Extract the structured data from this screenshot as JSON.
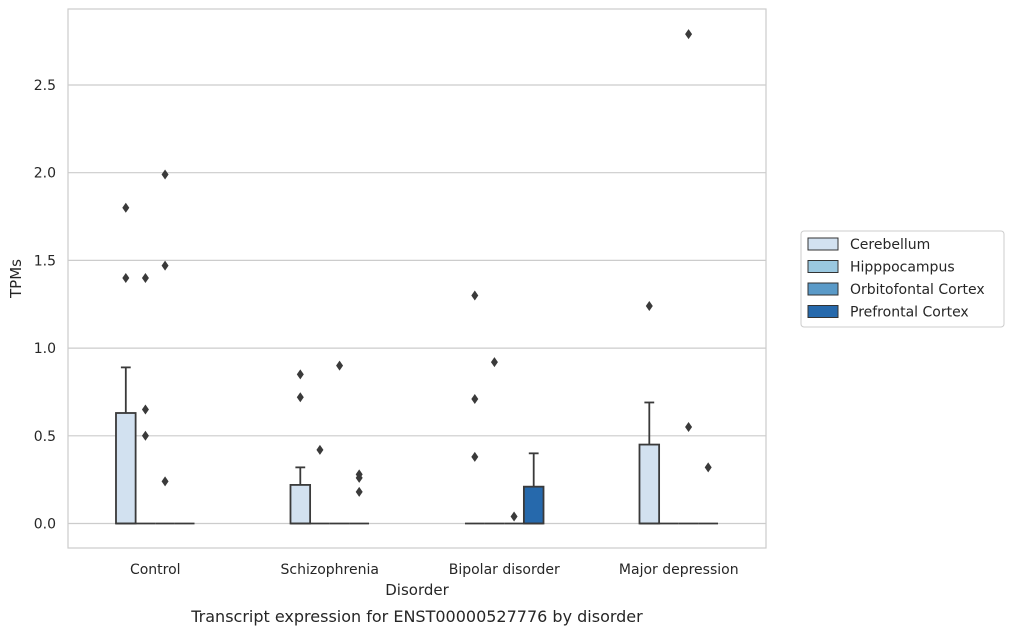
{
  "chart_data": {
    "type": "box",
    "caption": "Transcript expression for ENST00000527776 by disorder",
    "xlabel": "Disorder",
    "ylabel": "TPMs",
    "ylim": [
      -0.14,
      2.94
    ],
    "yticks": [
      "0.0",
      "0.5",
      "1.0",
      "1.5",
      "2.0",
      "2.5"
    ],
    "grid": "horizontal",
    "legend_position": "right",
    "categories": [
      "Control",
      "Schizophrenia",
      "Bipolar disorder",
      "Major depression"
    ],
    "series": [
      {
        "name": "Cerebellum",
        "color": "#d2e1f0",
        "boxes": [
          {
            "category": "Control",
            "q1": 0.0,
            "median": 0.0,
            "q3": 0.63,
            "whisker_low": 0.0,
            "whisker_high": 0.89,
            "outliers": [
              1.8,
              1.4
            ]
          },
          {
            "category": "Schizophrenia",
            "q1": 0.0,
            "median": 0.0,
            "q3": 0.22,
            "whisker_low": 0.0,
            "whisker_high": 0.32,
            "outliers": [
              0.85,
              0.72
            ]
          },
          {
            "category": "Bipolar disorder",
            "q1": 0.0,
            "median": 0.0,
            "q3": 0.0,
            "whisker_low": 0.0,
            "whisker_high": 0.0,
            "outliers": [
              1.3,
              0.71,
              0.38
            ]
          },
          {
            "category": "Major depression",
            "q1": 0.0,
            "median": 0.0,
            "q3": 0.45,
            "whisker_low": 0.0,
            "whisker_high": 0.69,
            "outliers": [
              1.24
            ]
          }
        ]
      },
      {
        "name": "Hipppocampus",
        "color": "#9ac8e0",
        "boxes": [
          {
            "category": "Control",
            "q1": 0.0,
            "median": 0.0,
            "q3": 0.0,
            "whisker_low": 0.0,
            "whisker_high": 0.0,
            "outliers": [
              1.4,
              0.65,
              0.5
            ]
          },
          {
            "category": "Schizophrenia",
            "q1": 0.0,
            "median": 0.0,
            "q3": 0.0,
            "whisker_low": 0.0,
            "whisker_high": 0.0,
            "outliers": [
              0.42
            ]
          },
          {
            "category": "Bipolar disorder",
            "q1": 0.0,
            "median": 0.0,
            "q3": 0.0,
            "whisker_low": 0.0,
            "whisker_high": 0.0,
            "outliers": [
              0.92
            ]
          },
          {
            "category": "Major depression",
            "q1": 0.0,
            "median": 0.0,
            "q3": 0.0,
            "whisker_low": 0.0,
            "whisker_high": 0.0,
            "outliers": []
          }
        ]
      },
      {
        "name": "Orbitofontal Cortex",
        "color": "#5a9ac8",
        "boxes": [
          {
            "category": "Control",
            "q1": 0.0,
            "median": 0.0,
            "q3": 0.0,
            "whisker_low": 0.0,
            "whisker_high": 0.0,
            "outliers": [
              1.99,
              1.47,
              0.24
            ]
          },
          {
            "category": "Schizophrenia",
            "q1": 0.0,
            "median": 0.0,
            "q3": 0.0,
            "whisker_low": 0.0,
            "whisker_high": 0.0,
            "outliers": [
              0.9
            ]
          },
          {
            "category": "Bipolar disorder",
            "q1": 0.0,
            "median": 0.0,
            "q3": 0.0,
            "whisker_low": 0.0,
            "whisker_high": 0.0,
            "outliers": [
              0.04
            ]
          },
          {
            "category": "Major depression",
            "q1": 0.0,
            "median": 0.0,
            "q3": 0.0,
            "whisker_low": 0.0,
            "whisker_high": 0.0,
            "outliers": [
              2.79,
              0.55
            ]
          }
        ]
      },
      {
        "name": "Prefrontal Cortex",
        "color": "#2669ac",
        "boxes": [
          {
            "category": "Control",
            "q1": 0.0,
            "median": 0.0,
            "q3": 0.0,
            "whisker_low": 0.0,
            "whisker_high": 0.0,
            "outliers": []
          },
          {
            "category": "Schizophrenia",
            "q1": 0.0,
            "median": 0.0,
            "q3": 0.0,
            "whisker_low": 0.0,
            "whisker_high": 0.0,
            "outliers": [
              0.28,
              0.26,
              0.18
            ]
          },
          {
            "category": "Bipolar disorder",
            "q1": 0.0,
            "median": 0.0,
            "q3": 0.21,
            "whisker_low": 0.0,
            "whisker_high": 0.4,
            "outliers": []
          },
          {
            "category": "Major depression",
            "q1": 0.0,
            "median": 0.0,
            "q3": 0.0,
            "whisker_low": 0.0,
            "whisker_high": 0.0,
            "outliers": [
              0.32
            ]
          }
        ]
      }
    ]
  }
}
